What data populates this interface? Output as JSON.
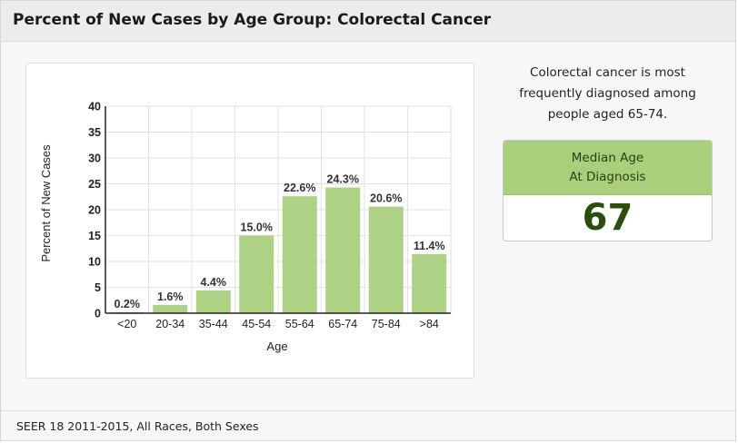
{
  "header": {
    "title": "Percent of New Cases by Age Group: Colorectal Cancer"
  },
  "summary": {
    "lines": [
      "Colorectal cancer is most",
      "frequently diagnosed among",
      "people aged 65-74."
    ]
  },
  "median": {
    "label_lines": [
      "Median Age",
      "At Diagnosis"
    ],
    "value": "67"
  },
  "footer": {
    "note": "SEER 18 2011-2015, All Races, Both Sexes"
  },
  "colors": {
    "bar": "#add285",
    "grid": "#e2e2e2",
    "axis": "#222222"
  },
  "chart_data": {
    "type": "bar",
    "categories": [
      "<20",
      "20-34",
      "35-44",
      "45-54",
      "55-64",
      "65-74",
      "75-84",
      ">84"
    ],
    "values": [
      0.2,
      1.6,
      4.4,
      15.0,
      22.6,
      24.3,
      20.6,
      11.4
    ],
    "data_labels": [
      "0.2%",
      "1.6%",
      "4.4%",
      "15.0%",
      "22.6%",
      "24.3%",
      "20.6%",
      "11.4%"
    ],
    "xlabel": "Age",
    "ylabel": "Percent of New Cases",
    "ylim": [
      0,
      40
    ],
    "yticks": [
      "0",
      "5",
      "10",
      "15",
      "20",
      "25",
      "30",
      "35",
      "40"
    ],
    "grid": true,
    "legend": "none"
  }
}
